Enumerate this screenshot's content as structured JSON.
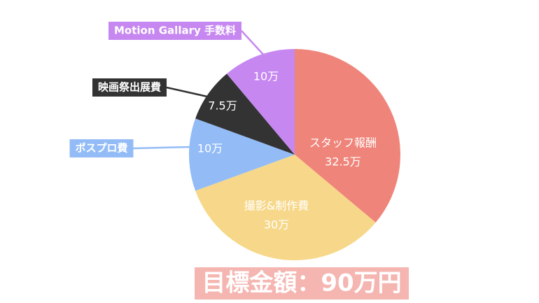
{
  "chart_data": {
    "type": "pie",
    "title": "目標金額：90万円",
    "categories": [
      "スタッフ報酬",
      "撮影&制作費",
      "ポスプロ費",
      "映画祭出展費",
      "Motion Gallary 手数料"
    ],
    "values": [
      32.5,
      30,
      10,
      7.5,
      10
    ],
    "value_labels": [
      "32.5万",
      "30万",
      "10万",
      "7.5万",
      "10万"
    ],
    "colors": [
      "#ef857a",
      "#f7d88a",
      "#93bcf7",
      "#333333",
      "#c688f0"
    ]
  }
}
